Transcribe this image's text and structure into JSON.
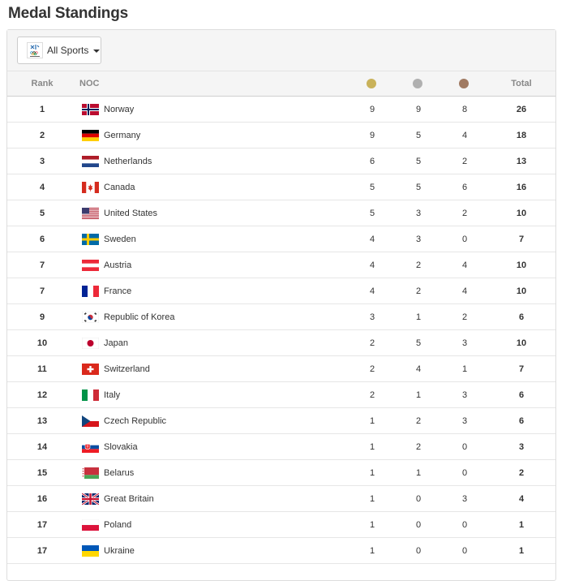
{
  "page": {
    "title": "Medal Standings"
  },
  "filter": {
    "label": "All Sports"
  },
  "table": {
    "headers": {
      "rank": "Rank",
      "noc": "NOC",
      "total": "Total"
    },
    "medal_colors": {
      "gold": "#c9b25a",
      "silver": "#b0b0b0",
      "bronze": "#a07a62"
    },
    "rows": [
      {
        "rank": "1",
        "noc": "Norway",
        "flag": "norway-flag-icon",
        "gold": "9",
        "silver": "9",
        "bronze": "8",
        "total": "26"
      },
      {
        "rank": "2",
        "noc": "Germany",
        "flag": "germany-flag-icon",
        "gold": "9",
        "silver": "5",
        "bronze": "4",
        "total": "18"
      },
      {
        "rank": "3",
        "noc": "Netherlands",
        "flag": "netherlands-flag-icon",
        "gold": "6",
        "silver": "5",
        "bronze": "2",
        "total": "13"
      },
      {
        "rank": "4",
        "noc": "Canada",
        "flag": "canada-flag-icon",
        "gold": "5",
        "silver": "5",
        "bronze": "6",
        "total": "16"
      },
      {
        "rank": "5",
        "noc": "United States",
        "flag": "united-states-flag-icon",
        "gold": "5",
        "silver": "3",
        "bronze": "2",
        "total": "10"
      },
      {
        "rank": "6",
        "noc": "Sweden",
        "flag": "sweden-flag-icon",
        "gold": "4",
        "silver": "3",
        "bronze": "0",
        "total": "7"
      },
      {
        "rank": "7",
        "noc": "Austria",
        "flag": "austria-flag-icon",
        "gold": "4",
        "silver": "2",
        "bronze": "4",
        "total": "10"
      },
      {
        "rank": "7",
        "noc": "France",
        "flag": "france-flag-icon",
        "gold": "4",
        "silver": "2",
        "bronze": "4",
        "total": "10"
      },
      {
        "rank": "9",
        "noc": "Republic of Korea",
        "flag": "korea-flag-icon",
        "gold": "3",
        "silver": "1",
        "bronze": "2",
        "total": "6"
      },
      {
        "rank": "10",
        "noc": "Japan",
        "flag": "japan-flag-icon",
        "gold": "2",
        "silver": "5",
        "bronze": "3",
        "total": "10"
      },
      {
        "rank": "11",
        "noc": "Switzerland",
        "flag": "switzerland-flag-icon",
        "gold": "2",
        "silver": "4",
        "bronze": "1",
        "total": "7"
      },
      {
        "rank": "12",
        "noc": "Italy",
        "flag": "italy-flag-icon",
        "gold": "2",
        "silver": "1",
        "bronze": "3",
        "total": "6"
      },
      {
        "rank": "13",
        "noc": "Czech Republic",
        "flag": "czech-flag-icon",
        "gold": "1",
        "silver": "2",
        "bronze": "3",
        "total": "6"
      },
      {
        "rank": "14",
        "noc": "Slovakia",
        "flag": "slovakia-flag-icon",
        "gold": "1",
        "silver": "2",
        "bronze": "0",
        "total": "3"
      },
      {
        "rank": "15",
        "noc": "Belarus",
        "flag": "belarus-flag-icon",
        "gold": "1",
        "silver": "1",
        "bronze": "0",
        "total": "2"
      },
      {
        "rank": "16",
        "noc": "Great Britain",
        "flag": "great-britain-flag-icon",
        "gold": "1",
        "silver": "0",
        "bronze": "3",
        "total": "4"
      },
      {
        "rank": "17",
        "noc": "Poland",
        "flag": "poland-flag-icon",
        "gold": "1",
        "silver": "0",
        "bronze": "0",
        "total": "1"
      },
      {
        "rank": "17",
        "noc": "Ukraine",
        "flag": "ukraine-flag-icon",
        "gold": "1",
        "silver": "0",
        "bronze": "0",
        "total": "1"
      }
    ]
  }
}
